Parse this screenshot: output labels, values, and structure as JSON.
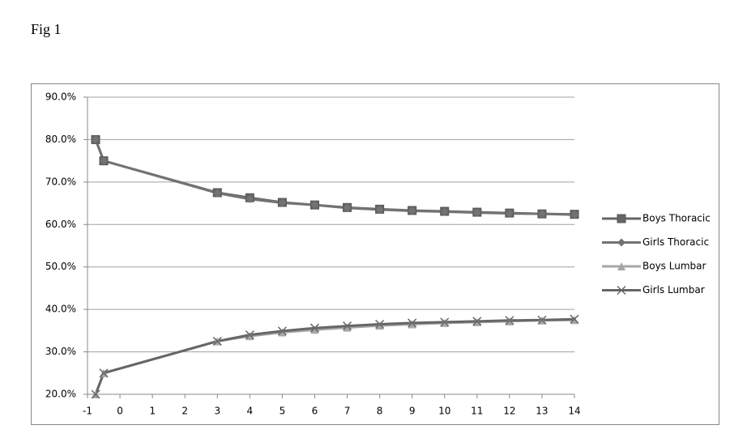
{
  "header": {
    "title": "Fig 1"
  },
  "chart_data": {
    "type": "line",
    "x": [
      -0.75,
      -0.5,
      3,
      4,
      5,
      6,
      7,
      8,
      9,
      10,
      11,
      12,
      13,
      14
    ],
    "series": [
      {
        "name": "Boys Thoracic",
        "color": "#666666",
        "marker": "square",
        "values": [
          80,
          75,
          67.5,
          66.3,
          65.2,
          64.6,
          64.0,
          63.6,
          63.3,
          63.1,
          62.9,
          62.7,
          62.5,
          62.4
        ]
      },
      {
        "name": "Girls Thoracic",
        "color": "#737373",
        "marker": "diamond",
        "values": [
          80,
          75,
          67.4,
          66.0,
          65.1,
          64.6,
          63.9,
          63.5,
          63.2,
          63.0,
          62.8,
          62.6,
          62.5,
          62.3
        ]
      },
      {
        "name": "Boys Lumbar",
        "color": "#a6a6a6",
        "marker": "triangle",
        "values": [
          20,
          25,
          32.5,
          33.7,
          34.6,
          35.2,
          35.7,
          36.2,
          36.5,
          36.8,
          37.0,
          37.2,
          37.4,
          37.5
        ]
      },
      {
        "name": "Girls Lumbar",
        "color": "#666666",
        "marker": "x",
        "values": [
          20,
          25,
          32.5,
          34.0,
          34.9,
          35.6,
          36.1,
          36.5,
          36.8,
          37.0,
          37.2,
          37.4,
          37.5,
          37.7
        ]
      }
    ],
    "xlim": [
      -1,
      14
    ],
    "xticks": [
      -1,
      0,
      1,
      2,
      3,
      4,
      5,
      6,
      7,
      8,
      9,
      10,
      11,
      12,
      13,
      14
    ],
    "ylim": [
      20,
      90
    ],
    "yticks": [
      {
        "value": 20,
        "label": "20.0%"
      },
      {
        "value": 30,
        "label": "30.0%"
      },
      {
        "value": 40,
        "label": "40.0%"
      },
      {
        "value": 50,
        "label": "50.0%"
      },
      {
        "value": 60,
        "label": "60.0%"
      },
      {
        "value": 70,
        "label": "70.0%"
      },
      {
        "value": 80,
        "label": "80.0%"
      },
      {
        "value": 90,
        "label": "90.0%"
      }
    ],
    "grid": true,
    "legend": "right"
  }
}
